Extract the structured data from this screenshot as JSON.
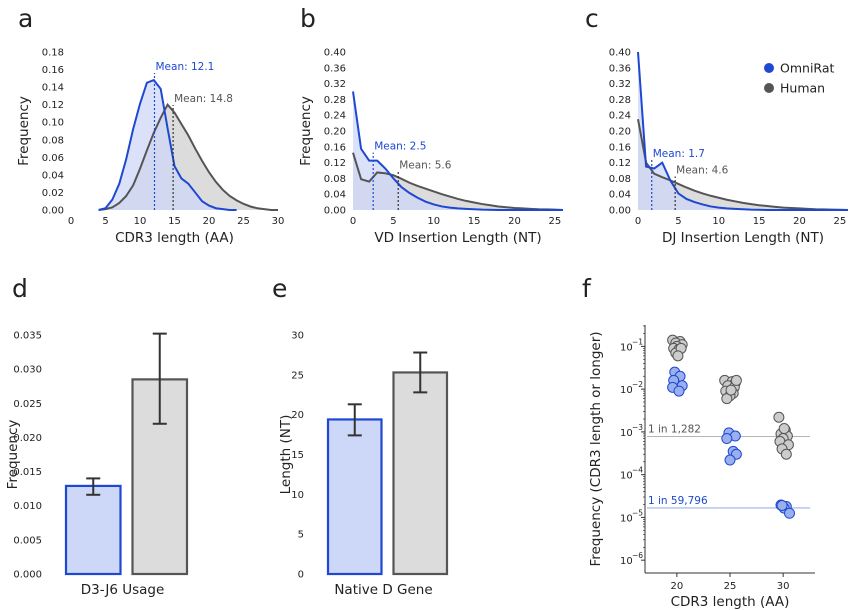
{
  "colors": {
    "omnirat": "#1f48d2",
    "omnirat_fill": "#cdd7f7",
    "human": "#555555",
    "human_fill": "#dcdcdc",
    "omnirat_dot": "#9ab0ee",
    "human_dot": "#cccccc"
  },
  "legend": [
    {
      "label": "OmniRat",
      "series": "omnirat"
    },
    {
      "label": "Human",
      "series": "human"
    }
  ],
  "chart_data": [
    {
      "panel": "a",
      "type": "area",
      "xlabel": "CDR3 length (AA)",
      "ylabel": "Frequency",
      "xlim": [
        0,
        30
      ],
      "ylim": [
        0,
        0.18
      ],
      "xticks": [
        0,
        5,
        10,
        15,
        20,
        25,
        30
      ],
      "yticks": [
        "0.00",
        "0.02",
        "0.04",
        "0.06",
        "0.08",
        "0.10",
        "0.12",
        "0.14",
        "0.16",
        "0.18"
      ],
      "series": [
        {
          "key": "omnirat",
          "x": [
            4,
            5,
            6,
            7,
            8,
            9,
            10,
            11,
            12,
            13,
            14,
            15,
            16,
            17,
            18,
            19,
            20,
            21,
            22,
            23,
            24
          ],
          "values": [
            0.0,
            0.002,
            0.012,
            0.03,
            0.058,
            0.092,
            0.121,
            0.145,
            0.148,
            0.138,
            0.093,
            0.05,
            0.036,
            0.03,
            0.02,
            0.01,
            0.005,
            0.002,
            0.001,
            0.0,
            0.0
          ]
        },
        {
          "key": "human",
          "x": [
            4,
            5,
            6,
            7,
            8,
            9,
            10,
            11,
            12,
            13,
            14,
            15,
            16,
            17,
            18,
            19,
            20,
            21,
            22,
            23,
            24,
            25,
            26,
            27,
            28,
            29,
            30
          ],
          "values": [
            0.0,
            0.001,
            0.003,
            0.008,
            0.016,
            0.028,
            0.047,
            0.068,
            0.088,
            0.105,
            0.12,
            0.111,
            0.098,
            0.085,
            0.07,
            0.056,
            0.043,
            0.032,
            0.023,
            0.016,
            0.011,
            0.007,
            0.004,
            0.002,
            0.001,
            0.0,
            0.0
          ]
        }
      ],
      "means": [
        {
          "key": "omnirat",
          "x": 12.1,
          "label": "Mean: 12.1"
        },
        {
          "key": "human",
          "x": 14.8,
          "label": "Mean: 14.8"
        }
      ]
    },
    {
      "panel": "b",
      "type": "area",
      "xlabel": "VD Insertion Length (NT)",
      "ylabel": "Frequency",
      "xlim": [
        0,
        26
      ],
      "ylim": [
        0,
        0.4
      ],
      "xticks": [
        0,
        5,
        10,
        15,
        20,
        25
      ],
      "yticks": [
        "0.00",
        "0.04",
        "0.08",
        "0.12",
        "0.16",
        "0.20",
        "0.24",
        "0.28",
        "0.32",
        "0.36",
        "0.40"
      ],
      "series": [
        {
          "key": "omnirat",
          "x": [
            0,
            1,
            2,
            3,
            4,
            5,
            6,
            7,
            8,
            9,
            10,
            11,
            12,
            13,
            14,
            15,
            16,
            18,
            20,
            26
          ],
          "values": [
            0.3,
            0.155,
            0.125,
            0.125,
            0.105,
            0.08,
            0.058,
            0.043,
            0.031,
            0.021,
            0.014,
            0.009,
            0.006,
            0.004,
            0.003,
            0.002,
            0.001,
            0.0,
            0.0,
            0.0
          ]
        },
        {
          "key": "human",
          "x": [
            0,
            1,
            2,
            3,
            4,
            5,
            6,
            7,
            8,
            9,
            10,
            11,
            12,
            13,
            14,
            15,
            16,
            17,
            18,
            19,
            20,
            21,
            22,
            23,
            24,
            25,
            26
          ],
          "values": [
            0.145,
            0.078,
            0.072,
            0.095,
            0.093,
            0.088,
            0.079,
            0.069,
            0.061,
            0.054,
            0.047,
            0.04,
            0.034,
            0.028,
            0.023,
            0.019,
            0.015,
            0.012,
            0.009,
            0.007,
            0.005,
            0.004,
            0.003,
            0.002,
            0.0015,
            0.001,
            0.0
          ]
        }
      ],
      "means": [
        {
          "key": "omnirat",
          "x": 2.5,
          "label": "Mean: 2.5"
        },
        {
          "key": "human",
          "x": 5.6,
          "label": "Mean: 5.6"
        }
      ]
    },
    {
      "panel": "c",
      "type": "area",
      "xlabel": "DJ Insertion Length (NT)",
      "ylabel": "",
      "xlim": [
        0,
        26
      ],
      "ylim": [
        0,
        0.4
      ],
      "xticks": [
        0,
        5,
        10,
        15,
        20,
        25
      ],
      "yticks": [
        "0.00",
        "0.04",
        "0.08",
        "0.12",
        "0.16",
        "0.20",
        "0.24",
        "0.28",
        "0.32",
        "0.36",
        "0.40"
      ],
      "series": [
        {
          "key": "omnirat",
          "x": [
            0,
            1,
            2,
            3,
            4,
            5,
            6,
            7,
            8,
            9,
            10,
            11,
            12,
            14,
            16,
            20,
            26
          ],
          "values": [
            0.4,
            0.11,
            0.105,
            0.12,
            0.075,
            0.042,
            0.028,
            0.02,
            0.014,
            0.009,
            0.006,
            0.004,
            0.003,
            0.001,
            0.0,
            0.0,
            0.0
          ]
        },
        {
          "key": "human",
          "x": [
            0,
            1,
            2,
            3,
            4,
            5,
            6,
            7,
            8,
            9,
            10,
            11,
            12,
            13,
            14,
            15,
            16,
            17,
            18,
            19,
            20,
            21,
            22,
            23,
            24,
            25,
            26
          ],
          "values": [
            0.23,
            0.12,
            0.092,
            0.083,
            0.075,
            0.066,
            0.057,
            0.049,
            0.042,
            0.036,
            0.031,
            0.026,
            0.022,
            0.018,
            0.015,
            0.012,
            0.01,
            0.008,
            0.006,
            0.005,
            0.004,
            0.003,
            0.002,
            0.0015,
            0.001,
            0.0005,
            0.0
          ]
        }
      ],
      "means": [
        {
          "key": "omnirat",
          "x": 1.7,
          "label": "Mean: 1.7"
        },
        {
          "key": "human",
          "x": 4.6,
          "label": "Mean: 4.6"
        }
      ]
    },
    {
      "panel": "d",
      "type": "bar",
      "xlabel": "D3-J6 Usage",
      "ylabel": "Frequency",
      "ylim": [
        0,
        0.035
      ],
      "yticks": [
        "0.000",
        "0.005",
        "0.010",
        "0.015",
        "0.020",
        "0.025",
        "0.030",
        "0.035"
      ],
      "series": [
        {
          "key": "omnirat",
          "value": 0.0129,
          "err_low": 0.0116,
          "err_high": 0.014
        },
        {
          "key": "human",
          "value": 0.0285,
          "err_low": 0.022,
          "err_high": 0.0352
        }
      ]
    },
    {
      "panel": "e",
      "type": "bar",
      "xlabel": "Native D Gene",
      "ylabel": "Length (NT)",
      "ylim": [
        0,
        30
      ],
      "yticks": [
        "0",
        "5",
        "10",
        "15",
        "20",
        "25",
        "30"
      ],
      "series": [
        {
          "key": "omnirat",
          "value": 19.4,
          "err_low": 17.4,
          "err_high": 21.3
        },
        {
          "key": "human",
          "value": 25.3,
          "err_low": 22.8,
          "err_high": 27.8
        }
      ]
    },
    {
      "panel": "f",
      "type": "scatter",
      "xlabel": "CDR3 length (AA)",
      "ylabel": "Frequency (CDR3 length or longer)",
      "yscale": "log",
      "xticks": [
        20,
        25,
        30
      ],
      "yticks": [
        {
          "exp": -1
        },
        {
          "exp": -2
        },
        {
          "exp": -3
        },
        {
          "exp": -4
        },
        {
          "exp": -5
        },
        {
          "exp": -6
        }
      ],
      "hlines": [
        {
          "key": "human",
          "y": 0.00078,
          "label": "1 in 1,282"
        },
        {
          "key": "omnirat",
          "y": 1.67e-05,
          "label": "1 in 59,796"
        }
      ],
      "series": [
        {
          "key": "human",
          "x": [
            19.6,
            20.3,
            19.9,
            20.5,
            20.0,
            19.7,
            20.2,
            19.9,
            20.4,
            20.1,
            24.5,
            25.2,
            25.5,
            24.8,
            25.4,
            24.6,
            25.3,
            25.0,
            25.6,
            24.7,
            25.1,
            29.6,
            30.2,
            29.8,
            30.4,
            30.0,
            29.7,
            30.5,
            29.9,
            30.3,
            30.1
          ],
          "values": [
            0.14,
            0.13,
            0.12,
            0.11,
            0.1,
            0.09,
            0.085,
            0.07,
            0.09,
            0.06,
            0.016,
            0.015,
            0.014,
            0.012,
            0.011,
            0.009,
            0.008,
            0.007,
            0.016,
            0.006,
            0.0095,
            0.0022,
            0.0011,
            0.0009,
            0.0008,
            0.0007,
            0.0006,
            0.0005,
            0.0004,
            0.0003,
            0.0012
          ]
        },
        {
          "key": "omnirat",
          "x": [
            19.8,
            20.3,
            19.7,
            20.5,
            19.6,
            20.2,
            24.9,
            25.5,
            24.7,
            25.3,
            25.6,
            25.0,
            29.8,
            30.3,
            30.1,
            30.6,
            29.9
          ],
          "values": [
            0.025,
            0.02,
            0.016,
            0.012,
            0.011,
            0.009,
            0.00095,
            0.0008,
            0.0007,
            0.00035,
            0.0003,
            0.00022,
            1.95e-05,
            1.8e-05,
            1.65e-05,
            1.25e-05,
            1.9e-05
          ]
        }
      ]
    }
  ]
}
